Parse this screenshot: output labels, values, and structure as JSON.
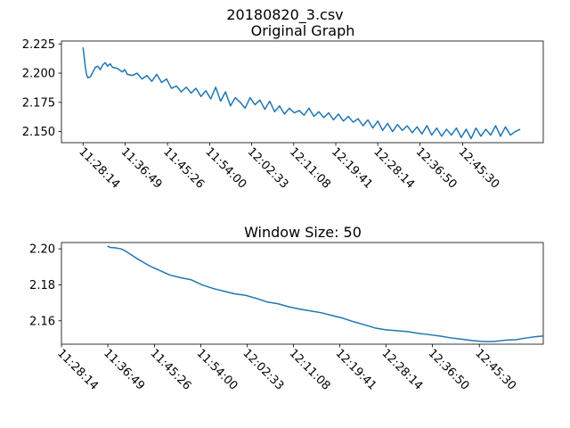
{
  "figure": {
    "suptitle": "20180820_3.csv"
  },
  "chart_data": [
    {
      "type": "line",
      "title": "Original Graph",
      "xlabel": "",
      "ylabel": "",
      "grid": false,
      "color": "#1f77b4",
      "x_tick_labels": [
        "11:28:14",
        "11:36:49",
        "11:45:26",
        "11:54:00",
        "12:02:33",
        "12:11:08",
        "12:19:41",
        "12:28:14",
        "12:36:50",
        "12:45:30"
      ],
      "x_tick_positions_min": [
        0,
        8.58,
        17.2,
        25.77,
        34.32,
        42.9,
        51.45,
        60,
        68.6,
        77.27
      ],
      "xlim_min": [
        -4.4,
        93.7
      ],
      "ylim": [
        2.1405,
        2.2275
      ],
      "y_ticks": [
        2.15,
        2.175,
        2.2,
        2.225
      ],
      "y_tick_labels": [
        "2.150",
        "2.175",
        "2.200",
        "2.225"
      ],
      "series": [
        {
          "x_min": [
            0,
            0.25,
            0.5,
            0.75,
            1,
            1.5,
            2,
            2.5,
            3,
            3.5,
            4,
            4.5,
            5,
            5.5,
            6,
            7,
            8,
            8.5,
            9,
            10,
            11,
            12,
            13,
            14,
            15,
            16,
            17,
            18,
            19,
            20,
            21,
            22,
            23,
            24,
            25,
            26,
            27,
            28,
            29,
            30,
            31,
            32,
            33,
            34,
            35,
            36,
            37,
            38,
            39,
            40,
            41,
            42,
            43,
            44,
            45,
            46,
            47,
            48,
            49,
            50,
            51,
            52,
            53,
            54,
            55,
            56,
            57,
            58,
            59,
            60,
            61,
            62,
            63,
            64,
            65,
            66,
            67,
            68,
            69,
            70,
            71,
            72,
            73,
            74,
            75,
            76,
            77,
            78,
            79,
            80,
            81,
            82,
            83,
            84,
            85,
            86,
            87,
            88,
            89
          ],
          "values": [
            2.222,
            2.213,
            2.204,
            2.198,
            2.196,
            2.197,
            2.201,
            2.205,
            2.206,
            2.203,
            2.207,
            2.209,
            2.206,
            2.208,
            2.205,
            2.204,
            2.201,
            2.203,
            2.199,
            2.198,
            2.2,
            2.195,
            2.198,
            2.193,
            2.199,
            2.192,
            2.195,
            2.187,
            2.189,
            2.184,
            2.188,
            2.183,
            2.187,
            2.18,
            2.185,
            2.178,
            2.188,
            2.176,
            2.184,
            2.172,
            2.179,
            2.175,
            2.17,
            2.179,
            2.173,
            2.177,
            2.169,
            2.176,
            2.167,
            2.172,
            2.165,
            2.17,
            2.166,
            2.168,
            2.164,
            2.17,
            2.163,
            2.167,
            2.162,
            2.166,
            2.16,
            2.165,
            2.159,
            2.163,
            2.158,
            2.161,
            2.155,
            2.16,
            2.153,
            2.159,
            2.151,
            2.157,
            2.15,
            2.156,
            2.151,
            2.155,
            2.149,
            2.154,
            2.148,
            2.155,
            2.147,
            2.153,
            2.146,
            2.152,
            2.147,
            2.153,
            2.145,
            2.152,
            2.144,
            2.153,
            2.146,
            2.152,
            2.147,
            2.155,
            2.146,
            2.154,
            2.147,
            2.15,
            2.152
          ]
        }
      ]
    },
    {
      "type": "line",
      "title": "Window Size: 50",
      "xlabel": "",
      "ylabel": "",
      "grid": false,
      "color": "#1f77b4",
      "x_tick_labels": [
        "11:28:14",
        "11:36:49",
        "11:45:26",
        "11:54:00",
        "12:02:33",
        "12:11:08",
        "12:19:41",
        "12:28:14",
        "12:36:50",
        "12:45:30"
      ],
      "x_tick_positions_min": [
        0,
        8.58,
        17.2,
        25.77,
        34.32,
        42.9,
        51.45,
        60,
        68.6,
        77.27
      ],
      "xlim_min": [
        0,
        89.1
      ],
      "ylim": [
        2.147,
        2.2035
      ],
      "y_ticks": [
        2.16,
        2.18,
        2.2
      ],
      "y_tick_labels": [
        "2.16",
        "2.18",
        "2.20"
      ],
      "series": [
        {
          "x_min": [
            8.5,
            9,
            10,
            11,
            12,
            13,
            14,
            15,
            16,
            17,
            18,
            20,
            22,
            24,
            26,
            28,
            30,
            32,
            34,
            36,
            38,
            40,
            42,
            44,
            46,
            48,
            50,
            52,
            54,
            56,
            58,
            60,
            62,
            64,
            66,
            68,
            70,
            72,
            74,
            76,
            78,
            80,
            82,
            84,
            86,
            88,
            89
          ],
          "values": [
            2.2015,
            2.2008,
            2.2005,
            2.2,
            2.1985,
            2.1965,
            2.1945,
            2.1928,
            2.191,
            2.1895,
            2.1882,
            2.1855,
            2.184,
            2.1828,
            2.18,
            2.178,
            2.1765,
            2.175,
            2.1742,
            2.1725,
            2.1705,
            2.1695,
            2.1678,
            2.1665,
            2.1655,
            2.1645,
            2.163,
            2.1615,
            2.1595,
            2.1578,
            2.156,
            2.155,
            2.1545,
            2.154,
            2.153,
            2.1523,
            2.1515,
            2.1505,
            2.1498,
            2.149,
            2.1485,
            2.1485,
            2.1492,
            2.1495,
            2.1505,
            2.1513,
            2.1515
          ]
        }
      ]
    }
  ]
}
